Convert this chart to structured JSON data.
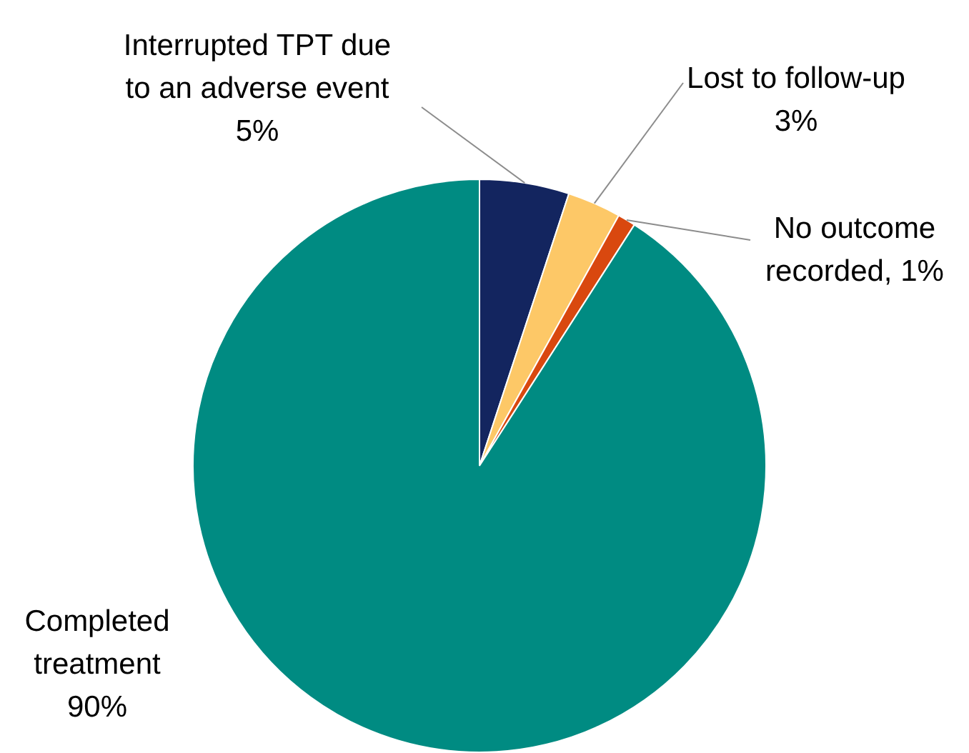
{
  "chart_data": {
    "type": "pie",
    "categories": [
      "Interrupted TPT due to an adverse event",
      "Lost to follow-up",
      "No outcome recorded",
      "Completed treatment"
    ],
    "values": [
      5,
      3,
      1,
      90
    ],
    "value_labels": [
      "5%",
      "3%",
      "1%",
      "90%"
    ],
    "colors": [
      "#13255f",
      "#fdc867",
      "#d9480f",
      "#008b82"
    ]
  }
}
